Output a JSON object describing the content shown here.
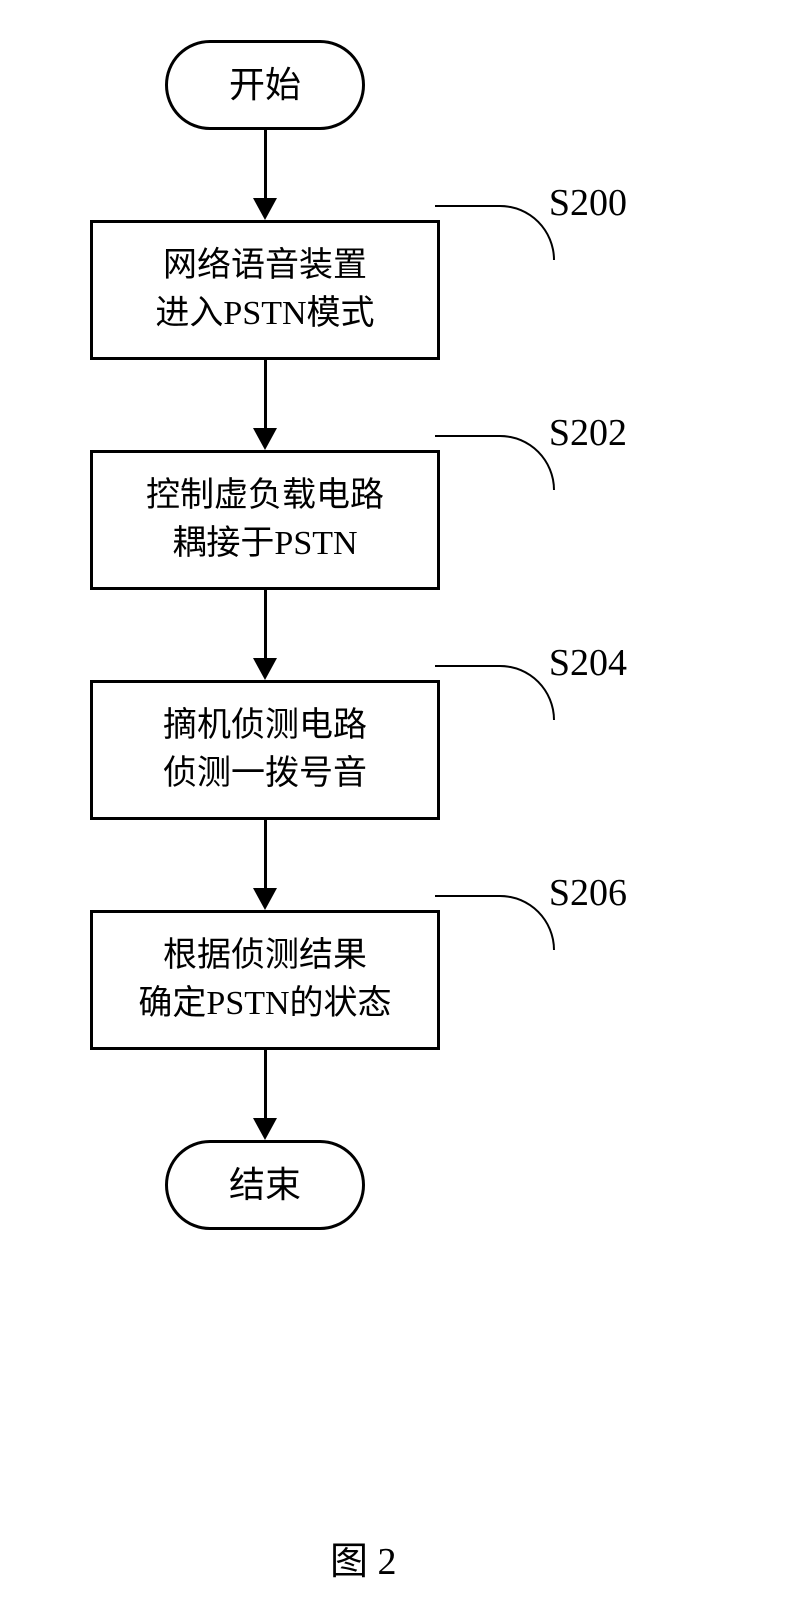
{
  "flowchart": {
    "type": "flowchart",
    "background_color": "#ffffff",
    "border_color": "#000000",
    "border_width": 3,
    "text_color": "#000000",
    "node_fontsize": 34,
    "terminal_fontsize": 36,
    "label_fontsize": 38,
    "label_font": "Times New Roman",
    "terminal_width": 200,
    "terminal_height": 90,
    "terminal_radius": 45,
    "process_width": 350,
    "process_height": 140,
    "arrow_length": 70,
    "arrow_head_size": 22,
    "nodes": {
      "start": {
        "type": "terminal",
        "text": "开始"
      },
      "s200": {
        "type": "process",
        "line1": "网络语音装置",
        "line2": "进入PSTN模式",
        "label": "S200"
      },
      "s202": {
        "type": "process",
        "line1": "控制虚负载电路",
        "line2": "耦接于PSTN",
        "label": "S202"
      },
      "s204": {
        "type": "process",
        "line1": "摘机侦测电路",
        "line2": "侦测一拨号音",
        "label": "S204"
      },
      "s206": {
        "type": "process",
        "line1": "根据侦测结果",
        "line2": "确定PSTN的状态",
        "label": "S206"
      },
      "end": {
        "type": "terminal",
        "text": "结束"
      }
    },
    "edges": [
      [
        "start",
        "s200"
      ],
      [
        "s200",
        "s202"
      ],
      [
        "s202",
        "s204"
      ],
      [
        "s204",
        "s206"
      ],
      [
        "s206",
        "end"
      ]
    ]
  },
  "figure_caption": "图 2"
}
